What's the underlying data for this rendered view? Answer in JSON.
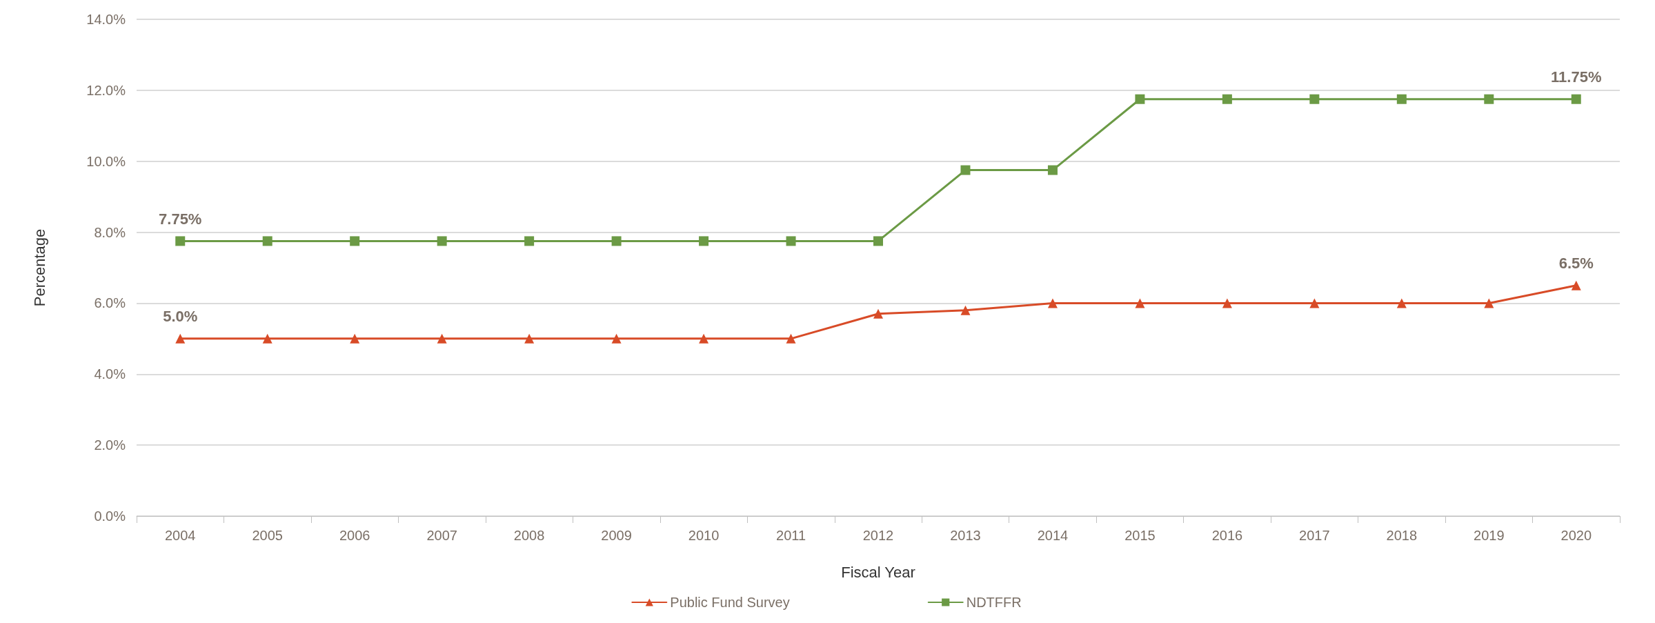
{
  "chart_data": {
    "type": "line",
    "xlabel": "Fiscal Year",
    "ylabel": "Percentage",
    "categories": [
      "2004",
      "2005",
      "2006",
      "2007",
      "2008",
      "2009",
      "2010",
      "2011",
      "2012",
      "2013",
      "2014",
      "2015",
      "2016",
      "2017",
      "2018",
      "2019",
      "2020"
    ],
    "series": [
      {
        "name": "Public Fund Survey",
        "color": "#d84b27",
        "marker": "triangle",
        "values": [
          5.0,
          5.0,
          5.0,
          5.0,
          5.0,
          5.0,
          5.0,
          5.0,
          5.7,
          5.8,
          6.0,
          6.0,
          6.0,
          6.0,
          6.0,
          6.0,
          6.5
        ],
        "value_labels": [
          "5.0%",
          null,
          null,
          null,
          null,
          null,
          null,
          null,
          null,
          null,
          null,
          null,
          null,
          null,
          null,
          null,
          "6.5%"
        ]
      },
      {
        "name": "NDTFFR",
        "color": "#6b9a45",
        "marker": "square",
        "values": [
          7.75,
          7.75,
          7.75,
          7.75,
          7.75,
          7.75,
          7.75,
          7.75,
          7.75,
          9.75,
          9.75,
          11.75,
          11.75,
          11.75,
          11.75,
          11.75,
          11.75
        ],
        "value_labels": [
          "7.75%",
          null,
          null,
          null,
          null,
          null,
          null,
          null,
          null,
          null,
          null,
          null,
          null,
          null,
          null,
          null,
          "11.75%"
        ]
      }
    ],
    "ylim": [
      0,
      14
    ],
    "yticks": [
      {
        "value": 0,
        "label": "0.0%"
      },
      {
        "value": 2,
        "label": "2.0%"
      },
      {
        "value": 4,
        "label": "4.0%"
      },
      {
        "value": 6,
        "label": "6.0%"
      },
      {
        "value": 8,
        "label": "8.0%"
      },
      {
        "value": 10,
        "label": "10.0%"
      },
      {
        "value": 12,
        "label": "12.0%"
      },
      {
        "value": 14,
        "label": "14.0%"
      }
    ],
    "grid": "y",
    "legend": "bottom",
    "line_style": "solid"
  }
}
